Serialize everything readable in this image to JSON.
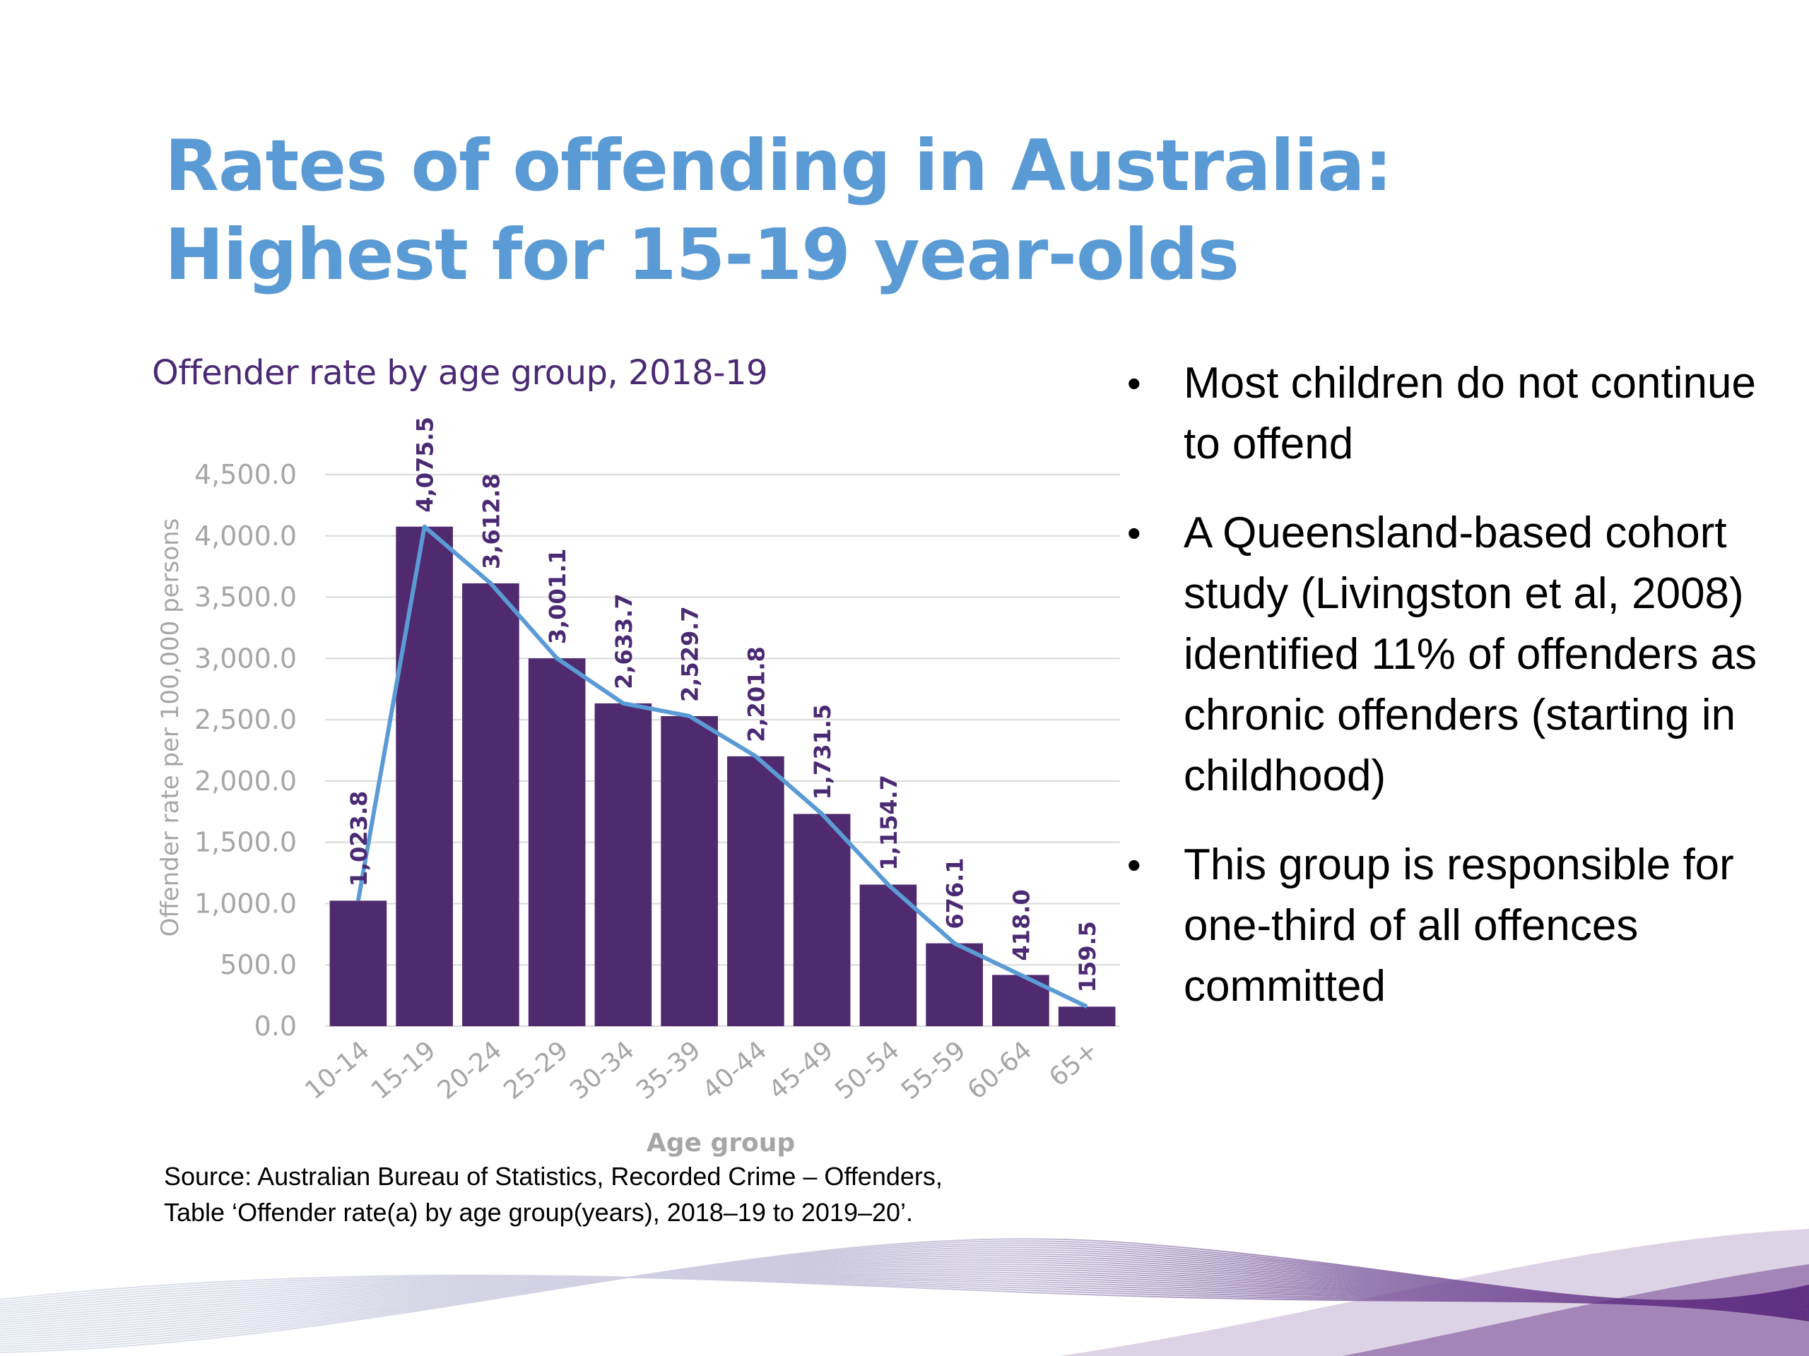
{
  "slide": {
    "title": "Rates of offending in Australia: Highest for 15-19 year-olds",
    "bullets": [
      "Most children do not continue to offend",
      "A Queensland-based cohort study (Livingston et al, 2008) identified 11% of offenders as chronic offenders (starting in childhood)",
      "This group is responsible for one-third of all offences committed"
    ],
    "source_line1": "Source: Australian Bureau of Statistics, Recorded Crime – Offenders,",
    "source_line2": "Table ‘Offender rate(a) by age group(years), 2018–19 to 2019–20’."
  },
  "colors": {
    "title": "#5b9bd5",
    "bar": "#4f2a6e",
    "line": "#5b9bd5",
    "data_label": "#4b2a74",
    "axis_text": "#a6a6a6",
    "grid": "#d9d9d9"
  },
  "chart_data": {
    "type": "bar",
    "title": "Offender rate by age group, 2018-19",
    "xlabel": "Age group",
    "ylabel": "Offender rate per 100,000 persons",
    "categories": [
      "10-14",
      "15-19",
      "20-24",
      "25-29",
      "30-34",
      "35-39",
      "40-44",
      "45-49",
      "50-54",
      "55-59",
      "60-64",
      "65+"
    ],
    "values": [
      1023.8,
      4075.5,
      3612.8,
      3001.1,
      2633.7,
      2529.7,
      2201.8,
      1731.5,
      1154.7,
      676.1,
      418.0,
      159.5
    ],
    "value_labels": [
      "1,023.8",
      "4,075.5",
      "3,612.8",
      "3,001.1",
      "2,633.7",
      "2,529.7",
      "2,201.8",
      "1,731.5",
      "1,154.7",
      "676.1",
      "418.0",
      "159.5"
    ],
    "ylim": [
      0,
      4500
    ],
    "yticks": [
      0,
      500,
      1000,
      1500,
      2000,
      2500,
      3000,
      3500,
      4000,
      4500
    ],
    "ytick_labels": [
      "0.0",
      "500.0",
      "1,000.0",
      "1,500.0",
      "2,000.0",
      "2,500.0",
      "3,000.0",
      "3,500.0",
      "4,000.0",
      "4,500.0"
    ],
    "overlay_line": true,
    "grid": true,
    "legend": "none"
  }
}
